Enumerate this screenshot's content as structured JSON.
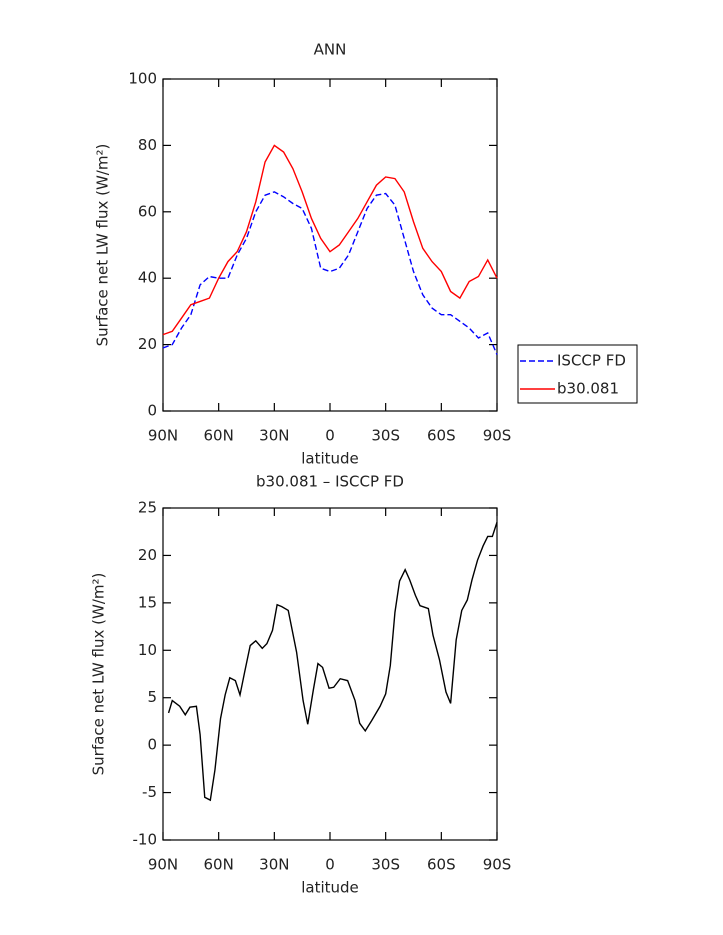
{
  "chart_data": [
    {
      "type": "line",
      "title": "ANN",
      "x_label": "latitude",
      "y_label": "Surface net LW flux (W/m²)",
      "x": [
        90,
        85,
        80,
        75,
        70,
        65,
        60,
        55,
        50,
        45,
        40,
        35,
        30,
        25,
        20,
        15,
        10,
        5,
        0,
        -5,
        -10,
        -15,
        -20,
        -25,
        -30,
        -35,
        -40,
        -45,
        -50,
        -55,
        -60,
        -65,
        -70,
        -75,
        -80,
        -85,
        -90
      ],
      "series": [
        {
          "name": "ISCCP FD",
          "color": "#0000ff",
          "linestyle": "dashed",
          "values": [
            19,
            20,
            25,
            29,
            38,
            40.5,
            40,
            40,
            47,
            52,
            60,
            65,
            66,
            64.5,
            62.5,
            61,
            55,
            43,
            42,
            43,
            47,
            54,
            61,
            65,
            65.5,
            62,
            52,
            42,
            35,
            31,
            29,
            29,
            27,
            25,
            22,
            23.5,
            17
          ]
        },
        {
          "name": "b30.081",
          "color": "#ff0000",
          "linestyle": "solid",
          "values": [
            23,
            24,
            28,
            32,
            33,
            34,
            40,
            45,
            48,
            54,
            63,
            75,
            80,
            78,
            73,
            66,
            58,
            52,
            48,
            50,
            54,
            58,
            63,
            68,
            70.5,
            70,
            66,
            57,
            49,
            45,
            42,
            36,
            34,
            39,
            40.5,
            45.5,
            40
          ]
        }
      ],
      "xlim": [
        90,
        -90
      ],
      "xticks": [
        {
          "value": 90,
          "label": "90N"
        },
        {
          "value": 60,
          "label": "60N"
        },
        {
          "value": 30,
          "label": "30N"
        },
        0,
        {
          "value": -30,
          "label": "30S"
        },
        {
          "value": -60,
          "label": "60S"
        },
        {
          "value": -90,
          "label": "90S"
        }
      ],
      "ylim": [
        0,
        100
      ],
      "yticks": [
        0,
        20,
        40,
        60,
        80,
        100
      ],
      "legend": "right"
    },
    {
      "type": "line",
      "title": "b30.081 – ISCCP FD",
      "x_label": "latitude",
      "y_label": "Surface net LW flux (W/m²)",
      "x": [
        87,
        85,
        81,
        78,
        75.5,
        72,
        70,
        67.5,
        64.5,
        62,
        59,
        56.5,
        54,
        51,
        48.5,
        46,
        43,
        40,
        36.5,
        34,
        31,
        28.5,
        26,
        22.5,
        18,
        14.5,
        12,
        9,
        6.5,
        4,
        0.5,
        -2,
        -5.5,
        -9.5,
        -13.5,
        -16,
        -19,
        -22.5,
        -27,
        -30,
        -32.5,
        -35,
        -37.5,
        -40.5,
        -43,
        -46,
        -48.5,
        -53,
        -55.5,
        -59,
        -62.5,
        -65,
        -68,
        -71,
        -74,
        -76.5,
        -79.5,
        -82.5,
        -85,
        -87.5,
        -90
      ],
      "series": [
        {
          "color": "#000000",
          "linestyle": "solid",
          "values": [
            3.4,
            4.7,
            4.1,
            3.2,
            4.0,
            4.1,
            1.1,
            -5.5,
            -5.8,
            -2.6,
            2.8,
            5.3,
            7.1,
            6.8,
            5.3,
            7.7,
            10.5,
            11,
            10.2,
            10.7,
            12.1,
            14.8,
            14.6,
            14.2,
            9.8,
            4.7,
            2.2,
            5.8,
            8.6,
            8.2,
            6.0,
            6.1,
            7.0,
            6.8,
            4.7,
            2.3,
            1.5,
            2.6,
            4.1,
            5.4,
            8.4,
            14,
            17.3,
            18.5,
            17.4,
            15.8,
            14.7,
            14.4,
            11.6,
            9.0,
            5.6,
            4.4,
            11.1,
            14.2,
            15.3,
            17.4,
            19.5,
            21,
            22,
            22,
            23.5
          ]
        }
      ],
      "xlim": [
        90,
        -90
      ],
      "xticks": [
        {
          "value": 90,
          "label": "90N"
        },
        {
          "value": 60,
          "label": "60N"
        },
        {
          "value": 30,
          "label": "30N"
        },
        0,
        {
          "value": -30,
          "label": "30S"
        },
        {
          "value": -60,
          "label": "60S"
        },
        {
          "value": -90,
          "label": "90S"
        }
      ],
      "ylim": [
        -10,
        25
      ],
      "yticks": [
        -10,
        -5,
        0,
        5,
        10,
        15,
        20,
        25
      ]
    }
  ]
}
